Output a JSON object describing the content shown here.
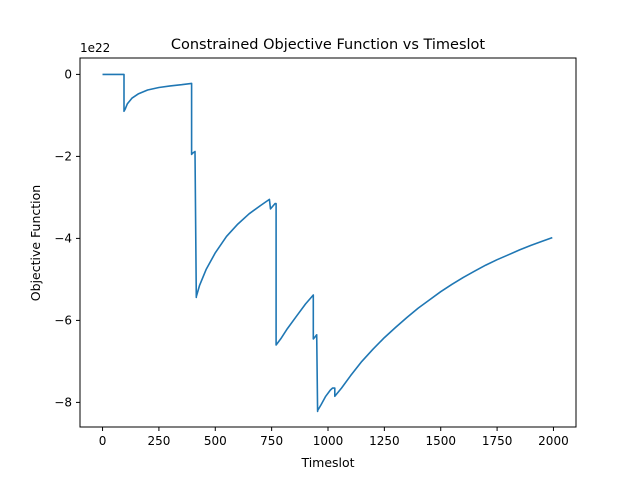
{
  "chart_data": {
    "type": "line",
    "title": "Constrained Objective Function vs Timeslot",
    "xlabel": "Timeslot",
    "ylabel": "Objective Function",
    "y_offset_label": "1e22",
    "xlim": [
      -100,
      2100
    ],
    "ylim": [
      -8.6,
      0.4
    ],
    "xticks": [
      0,
      250,
      500,
      750,
      1000,
      1250,
      1500,
      1750,
      2000
    ],
    "xtick_labels": [
      "0",
      "250",
      "500",
      "750",
      "1000",
      "1250",
      "1500",
      "1750",
      "2000"
    ],
    "yticks": [
      0,
      -2,
      -4,
      -6,
      -8
    ],
    "ytick_labels": [
      "0",
      "−2",
      "−4",
      "−6",
      "−8"
    ],
    "grid": false,
    "color": "#1f77b4",
    "series": [
      {
        "x": [
          0,
          95,
          95,
          100,
          110,
          130,
          160,
          200,
          250,
          300,
          350,
          395,
          395,
          400,
          410,
          410,
          416,
          416,
          430,
          460,
          500,
          550,
          600,
          650,
          700,
          740,
          745,
          765,
          766,
          770,
          770,
          790,
          820,
          860,
          900,
          935,
          935,
          940,
          950,
          950,
          954,
          954,
          970,
          990,
          1010,
          1020,
          1020,
          1030,
          1030,
          1060,
          1100,
          1150,
          1200,
          1250,
          1300,
          1350,
          1400,
          1450,
          1500,
          1550,
          1600,
          1650,
          1700,
          1750,
          1800,
          1850,
          1900,
          1950,
          1995
        ],
        "y": [
          0,
          0,
          -0.9,
          -0.85,
          -0.72,
          -0.58,
          -0.47,
          -0.38,
          -0.32,
          -0.28,
          -0.25,
          -0.22,
          -1.95,
          -1.92,
          -1.88,
          -1.88,
          -5.44,
          -5.42,
          -5.15,
          -4.75,
          -4.35,
          -3.95,
          -3.65,
          -3.4,
          -3.2,
          -3.05,
          -3.28,
          -3.15,
          -3.15,
          -3.15,
          -6.6,
          -6.45,
          -6.2,
          -5.9,
          -5.6,
          -5.38,
          -6.45,
          -6.42,
          -6.35,
          -6.35,
          -8.22,
          -8.2,
          -8.05,
          -7.85,
          -7.7,
          -7.65,
          -7.65,
          -7.65,
          -7.85,
          -7.65,
          -7.35,
          -7.0,
          -6.7,
          -6.42,
          -6.17,
          -5.93,
          -5.7,
          -5.5,
          -5.3,
          -5.12,
          -4.95,
          -4.8,
          -4.65,
          -4.52,
          -4.4,
          -4.28,
          -4.17,
          -4.07,
          -3.98
        ]
      }
    ]
  }
}
